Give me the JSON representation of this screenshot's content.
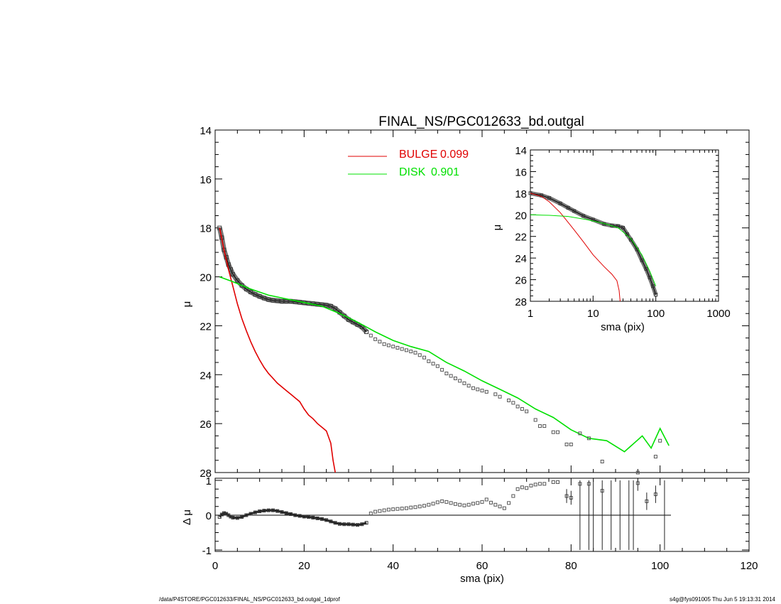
{
  "chart_data": [
    {
      "type": "line",
      "id": "main",
      "title": "FINAL_NS/PGC012633_bd.outgal",
      "xlabel": "",
      "ylabel": "μ",
      "xlim": [
        0,
        120
      ],
      "ylim": [
        28,
        14
      ],
      "ylim_note": "reversed",
      "xticks": [
        "0",
        "20",
        "40",
        "60",
        "80",
        "100",
        "120"
      ],
      "yticks": [
        "14",
        "16",
        "18",
        "20",
        "22",
        "24",
        "26",
        "28"
      ],
      "colors": {
        "bulge": "#e00000",
        "disk": "#00e000",
        "data": "#000000",
        "points": "#555555"
      },
      "legend": {
        "placement": "top-center",
        "entries": [
          {
            "label": "BULGE",
            "value": "0.099",
            "color": "#e00000"
          },
          {
            "label": "DISK",
            "value": "0.901",
            "color": "#00e000"
          }
        ]
      },
      "series": [
        {
          "key": "bulge",
          "x": [
            1,
            2,
            3,
            4,
            5,
            6,
            7,
            8,
            9,
            10,
            11,
            12,
            13,
            14,
            15,
            16,
            17,
            18,
            19,
            20,
            21,
            22,
            23,
            24,
            25,
            26,
            26.5,
            27
          ],
          "y": [
            18.0,
            18.9,
            19.7,
            20.4,
            21.1,
            21.7,
            22.2,
            22.65,
            23.05,
            23.4,
            23.7,
            23.95,
            24.15,
            24.35,
            24.5,
            24.65,
            24.8,
            24.95,
            25.1,
            25.4,
            25.65,
            25.8,
            26.0,
            26.15,
            26.3,
            26.8,
            27.5,
            28.0
          ]
        },
        {
          "key": "disk",
          "x": [
            1,
            4,
            8,
            12,
            16,
            20,
            24,
            28,
            32,
            36,
            40,
            44,
            48,
            52,
            56,
            60,
            64,
            68,
            72,
            76,
            80,
            84,
            88,
            92,
            96,
            98,
            100,
            102
          ],
          "y": [
            20.0,
            20.2,
            20.5,
            20.75,
            20.9,
            21.05,
            21.2,
            21.5,
            21.85,
            22.25,
            22.6,
            22.85,
            23.05,
            23.5,
            23.85,
            24.25,
            24.6,
            24.95,
            25.4,
            25.75,
            26.25,
            26.6,
            26.7,
            27.15,
            26.5,
            27.0,
            26.2,
            26.9
          ]
        },
        {
          "key": "data",
          "x": [
            1,
            1.5,
            2,
            2.5,
            3,
            3.5,
            4,
            5,
            6,
            7,
            8,
            9,
            10,
            11,
            12,
            13,
            14,
            15,
            16,
            17,
            18,
            19,
            20,
            21,
            22,
            23,
            24,
            25,
            26,
            27,
            28,
            29,
            30,
            31,
            32,
            33,
            34
          ],
          "y": [
            18.0,
            18.4,
            18.9,
            19.2,
            19.5,
            19.7,
            19.9,
            20.15,
            20.35,
            20.5,
            20.62,
            20.72,
            20.8,
            20.87,
            20.93,
            20.96,
            20.98,
            21.0,
            21.0,
            21.0,
            21.02,
            21.04,
            21.06,
            21.08,
            21.1,
            21.12,
            21.14,
            21.16,
            21.2,
            21.3,
            21.45,
            21.6,
            21.75,
            21.85,
            21.95,
            22.05,
            22.25
          ]
        },
        {
          "key": "points",
          "x": [
            35,
            36,
            37,
            38,
            39,
            40,
            41,
            42,
            43,
            44,
            45,
            46,
            47,
            48,
            49,
            50,
            51,
            52,
            53,
            54,
            55,
            56,
            57,
            58,
            59,
            60,
            61,
            63,
            64,
            66,
            67,
            68,
            69,
            70,
            72,
            73,
            74,
            76,
            77,
            79,
            80,
            82,
            84,
            87,
            95,
            99,
            100
          ],
          "y": [
            22.4,
            22.55,
            22.65,
            22.75,
            22.8,
            22.85,
            22.9,
            22.95,
            23.0,
            23.05,
            23.1,
            23.2,
            23.3,
            23.45,
            23.55,
            23.65,
            23.8,
            23.95,
            24.05,
            24.15,
            24.25,
            24.35,
            24.45,
            24.55,
            24.6,
            24.65,
            24.7,
            24.8,
            24.9,
            25.05,
            25.15,
            25.3,
            25.4,
            25.5,
            25.85,
            26.1,
            26.1,
            26.35,
            26.35,
            26.85,
            26.85,
            26.4,
            26.6,
            27.55,
            28.0,
            27.35,
            26.7
          ]
        }
      ]
    },
    {
      "type": "scatter",
      "id": "residual",
      "xlabel": "sma (pix)",
      "ylabel": "Δ μ",
      "xlim": [
        0,
        120
      ],
      "ylim": [
        -1,
        1
      ],
      "xticks": [
        "0",
        "20",
        "40",
        "60",
        "80",
        "100",
        "120"
      ],
      "yticks": [
        "-1",
        "0",
        "1"
      ],
      "series": [
        {
          "key": "residual-curve",
          "x": [
            1,
            1.5,
            2,
            2.5,
            3,
            3.5,
            4,
            5,
            6,
            7,
            8,
            9,
            10,
            11,
            12,
            13,
            14,
            15,
            16,
            17,
            18,
            19,
            20,
            21,
            22,
            23,
            24,
            25,
            26,
            27,
            28,
            29,
            30,
            31,
            32,
            33,
            34
          ],
          "y": [
            -0.05,
            0.02,
            0.06,
            0.04,
            0.0,
            -0.04,
            -0.07,
            -0.08,
            -0.05,
            0.0,
            0.04,
            0.08,
            0.11,
            0.13,
            0.14,
            0.14,
            0.12,
            0.09,
            0.06,
            0.03,
            0.0,
            -0.02,
            -0.04,
            -0.05,
            -0.07,
            -0.09,
            -0.11,
            -0.14,
            -0.18,
            -0.22,
            -0.25,
            -0.26,
            -0.26,
            -0.27,
            -0.28,
            -0.26,
            -0.22
          ]
        },
        {
          "key": "residual-points",
          "x": [
            35,
            36,
            37,
            38,
            39,
            40,
            41,
            42,
            43,
            44,
            45,
            46,
            47,
            48,
            49,
            50,
            51,
            52,
            53,
            54,
            55,
            56,
            57,
            58,
            59,
            60,
            61,
            62,
            63,
            64,
            65,
            66,
            67,
            68,
            69,
            70,
            71,
            72,
            73,
            74,
            76,
            77,
            79,
            80,
            82,
            84,
            87,
            95,
            97,
            99
          ],
          "y": [
            0.05,
            0.1,
            0.12,
            0.14,
            0.16,
            0.17,
            0.18,
            0.19,
            0.2,
            0.22,
            0.23,
            0.25,
            0.27,
            0.3,
            0.33,
            0.37,
            0.4,
            0.38,
            0.35,
            0.32,
            0.3,
            0.28,
            0.3,
            0.33,
            0.35,
            0.38,
            0.45,
            0.36,
            0.3,
            0.25,
            0.2,
            0.35,
            0.55,
            0.75,
            0.8,
            0.78,
            0.85,
            0.88,
            0.9,
            0.9,
            0.95,
            0.95,
            0.55,
            0.5,
            0.9,
            0.9,
            0.7,
            0.92,
            0.4,
            0.6
          ],
          "error_x": [
            79,
            80,
            82,
            84,
            85,
            87,
            89,
            91,
            93,
            94,
            95,
            97,
            99,
            101
          ],
          "error_low": [
            0.35,
            0.3,
            -1,
            -1,
            -1,
            -1,
            -1,
            -1,
            -1,
            -1,
            0.7,
            0.15,
            0.35,
            -1
          ],
          "error_high": [
            0.75,
            0.7,
            1,
            1,
            1,
            1,
            1,
            1,
            1,
            1,
            1,
            0.65,
            0.85,
            1
          ]
        }
      ]
    },
    {
      "type": "line",
      "id": "inset",
      "xlabel": "sma (pix)",
      "ylabel": "μ",
      "xscale": "log",
      "xlim": [
        1,
        1000
      ],
      "ylim": [
        28,
        14
      ],
      "xticks": [
        "1",
        "10",
        "100",
        "1000"
      ],
      "yticks": [
        "14",
        "16",
        "18",
        "20",
        "22",
        "24",
        "26",
        "28"
      ],
      "series": [
        {
          "key": "inset-bulge",
          "x": [
            1,
            1.5,
            2,
            3,
            4,
            5,
            7,
            10,
            15,
            20,
            24,
            26,
            27
          ],
          "y": [
            18.0,
            18.3,
            18.8,
            19.8,
            20.7,
            21.4,
            22.5,
            23.7,
            24.8,
            25.5,
            26.1,
            27.0,
            28.0
          ]
        },
        {
          "key": "inset-disk",
          "x": [
            1,
            2,
            4,
            8,
            15,
            25,
            40,
            60,
            80,
            100
          ],
          "y": [
            20.0,
            20.05,
            20.15,
            20.45,
            20.8,
            21.2,
            22.2,
            23.7,
            25.2,
            26.6
          ]
        },
        {
          "key": "inset-data",
          "x": [
            1,
            1.5,
            2,
            3,
            4,
            5,
            7,
            10,
            15,
            20,
            25,
            30,
            35,
            40,
            50,
            60,
            70,
            80,
            90,
            100
          ],
          "y": [
            18.0,
            18.2,
            18.45,
            18.95,
            19.35,
            19.65,
            20.1,
            20.45,
            20.85,
            21.0,
            21.05,
            21.2,
            21.8,
            22.3,
            23.2,
            24.2,
            25.0,
            25.8,
            26.6,
            27.4
          ]
        }
      ]
    }
  ],
  "footer": {
    "path": "/data/P4STORE/PGC012633/FINAL_NS/PGC012633_bd.outgal_1dprof",
    "stamp": "s4g@fys091005  Thu Jun  5 19:13:31 2014"
  }
}
